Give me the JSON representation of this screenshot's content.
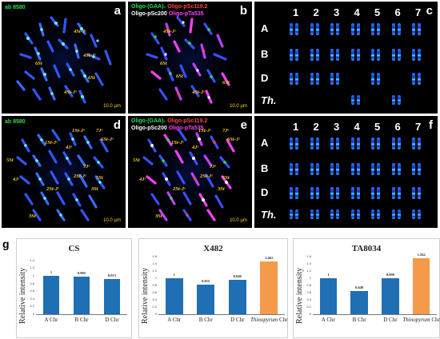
{
  "panels": {
    "a": {
      "letter": "a",
      "top_label": "ab 8580",
      "scale": "10.0 µm",
      "annotations": [
        "4St-Jˢ",
        "4St-Jˢ",
        "6St",
        "4St-Jˢ",
        "6St"
      ]
    },
    "b": {
      "letter": "b",
      "line1_left": "Oligo-(GAA)₇",
      "line1_right": "Oligo-pSc119.2",
      "line2_left": "Oligo-pSc200",
      "line2_right": "Oligo-pTa535",
      "scale": "10.0 µm",
      "annotations": [
        "4St-Jˢ",
        "6St",
        "6St",
        "4St-Jˢ",
        "6St"
      ]
    },
    "c": {
      "letter": "c",
      "columns": [
        "1",
        "2",
        "3",
        "4",
        "5",
        "6",
        "7"
      ],
      "rows": [
        "A",
        "B",
        "D",
        "Th."
      ]
    },
    "d": {
      "letter": "d",
      "top_label": "ab 8580",
      "scale": "10.0 µm",
      "annotations": [
        "1St-Jˢ",
        "7Jˢ",
        "6St-Jˢ",
        "4Jˢ",
        "1St-Jˢ",
        "5St",
        "4Jˢ",
        "7Jˢ",
        "2St-Jˢ",
        "3St",
        "2St-Jˢ",
        "5St",
        "3St"
      ]
    },
    "e": {
      "letter": "e",
      "line1_left": "Oligo-(GAA)₇",
      "line1_right": "Oligo-pSc119.2",
      "line2_left": "Oligo-pSc200",
      "line2_right": "Oligo-pTa535",
      "scale": "10.0 µm",
      "annotations": [
        "1St-Jˢ",
        "7Jˢ",
        "6St-Jˢ",
        "1St-Jˢ",
        "4Jˢ",
        "5St",
        "7Jˢ",
        "2St-Jˢ",
        "4Jˢ",
        "3St",
        "2St-Jˢ",
        "5St",
        "3St"
      ]
    },
    "f": {
      "letter": "f",
      "columns": [
        "1",
        "2",
        "3",
        "4",
        "5",
        "6",
        "7"
      ],
      "rows": [
        "A",
        "B",
        "D",
        "Th."
      ]
    },
    "g": {
      "letter": "g"
    }
  },
  "colors": {
    "gaa": "#22e04a",
    "psc119": "#ff4040",
    "psc200": "#ffffff",
    "pta535": "#ff40ff",
    "annot": "#ffd21a",
    "bar_blue": "#1f6fb5",
    "bar_orange": "#f39a4b"
  },
  "chart_data": [
    {
      "type": "bar",
      "title": "CS",
      "ylabel": "Relative intensity",
      "categories": [
        "A Chr",
        "B Chr",
        "D Chr"
      ],
      "values": [
        1,
        0.985,
        0.913
      ],
      "value_labels": [
        "1",
        "0.985",
        "0.913"
      ],
      "ylim": [
        0,
        1.5
      ],
      "yticks": [
        "0",
        "0.2",
        "0.4",
        "0.6",
        "0.8",
        "1",
        "1.2",
        "1.4"
      ],
      "bar_colors": [
        "#1f6fb5",
        "#1f6fb5",
        "#1f6fb5"
      ]
    },
    {
      "type": "bar",
      "title": "X482",
      "ylabel": "Relative intensity",
      "categories": [
        "A Chr",
        "B Chr",
        "D Chr",
        "Thinopyrum Chr"
      ],
      "values": [
        1,
        0.815,
        0.946,
        1.461
      ],
      "value_labels": [
        "1",
        "0.815",
        "0.946",
        "1.461"
      ],
      "ylim": [
        0,
        1.6
      ],
      "yticks": [
        "0",
        "0.2",
        "0.4",
        "0.6",
        "0.8",
        "1",
        "1.2",
        "1.4",
        "1.6"
      ],
      "bar_colors": [
        "#1f6fb5",
        "#1f6fb5",
        "#1f6fb5",
        "#f39a4b"
      ]
    },
    {
      "type": "bar",
      "title": "TA8034",
      "ylabel": "Relative intensity",
      "categories": [
        "A Chr",
        "B Chr",
        "D Chr",
        "Thinopyrum Chr"
      ],
      "values": [
        1,
        0.649,
        0.999,
        1.562
      ],
      "value_labels": [
        "1",
        "0.649",
        "0.999",
        "1.562"
      ],
      "ylim": [
        0,
        1.6
      ],
      "yticks": [
        "0",
        "0.2",
        "0.4",
        "0.6",
        "0.8",
        "1",
        "1.2",
        "1.4",
        "1.6"
      ],
      "bar_colors": [
        "#1f6fb5",
        "#1f6fb5",
        "#1f6fb5",
        "#f39a4b"
      ]
    }
  ]
}
